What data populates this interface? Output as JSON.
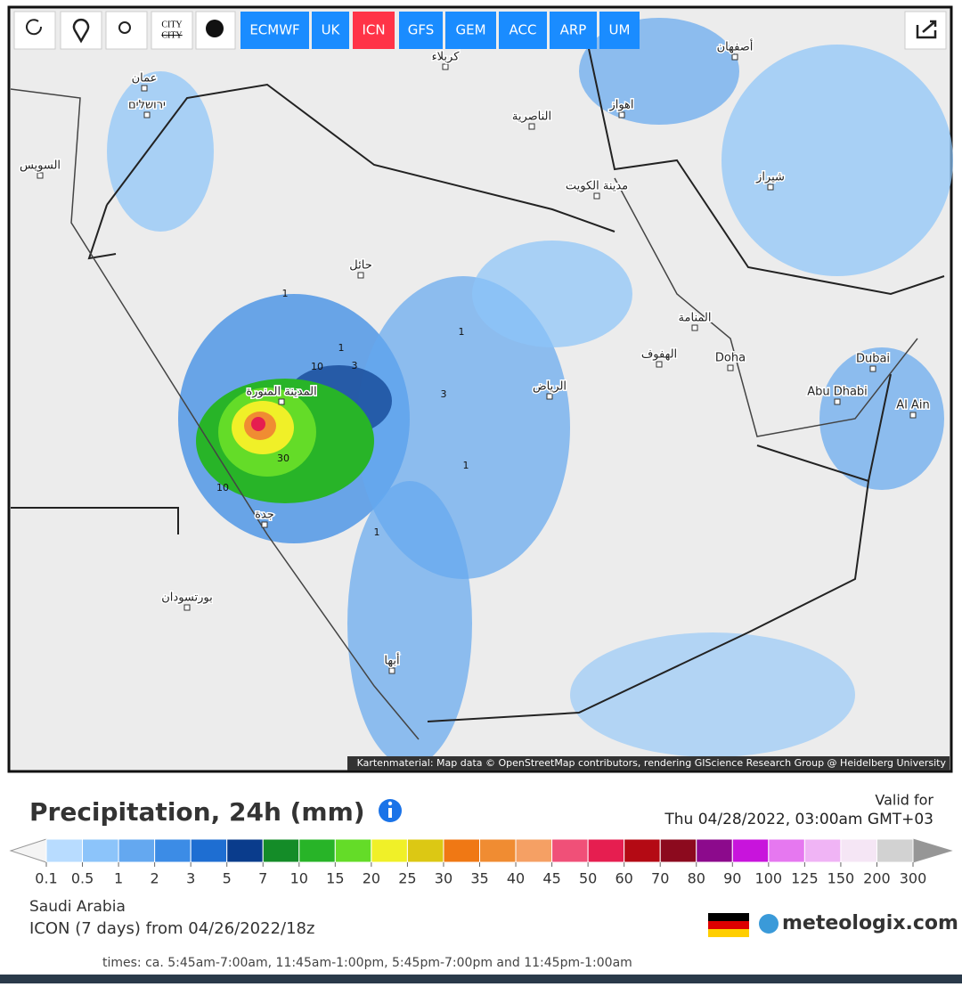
{
  "toolbar": {
    "tools": [
      "CITY",
      "CITY"
    ],
    "models": [
      "ECMWF",
      "UK",
      "ICN",
      "GFS",
      "GEM",
      "ACC",
      "ARP",
      "UM"
    ],
    "active_model": "ICN"
  },
  "map": {
    "labels": [
      "كربلاء",
      "أصفهان",
      "عمان",
      "ירושלים",
      "اهواز",
      "الناصرية",
      "السويس",
      "مدينة الكويت",
      "شيراز",
      "حائل",
      "المنامة",
      "الهفوف",
      "Doha",
      "Dubai",
      "الرياض",
      "المدينة المنورة",
      "Abu Dhabi",
      "Al Ain",
      "جدة",
      "بورتسودان",
      "أبها"
    ],
    "contours": [
      "1",
      "1",
      "1",
      "3",
      "10",
      "30",
      "10",
      "3",
      "1",
      "1"
    ],
    "attribution": "Kartenmaterial: Map data © OpenStreetMap contributors, rendering GIScience Research Group @ Heidelberg University"
  },
  "legend": {
    "title": "Precipitation, 24h (mm)",
    "valid_label": "Valid for",
    "valid_time": "Thu 04/28/2022, 03:00am GMT+03",
    "labels": [
      "0.1",
      "0.5",
      "1",
      "2",
      "3",
      "5",
      "7",
      "10",
      "15",
      "20",
      "25",
      "30",
      "35",
      "40",
      "45",
      "50",
      "60",
      "70",
      "80",
      "90",
      "100",
      "125",
      "150",
      "200",
      "300"
    ],
    "colors": [
      "#b8dcff",
      "#8cc4fa",
      "#64a8f0",
      "#3c8ce6",
      "#1e6ed2",
      "#0a3c8c",
      "#148c28",
      "#28b428",
      "#64dc28",
      "#f0f028",
      "#dcc814",
      "#f07814",
      "#f08c32",
      "#f5a064",
      "#f05078",
      "#e61e50",
      "#b40a14",
      "#8c0a1e",
      "#8c0a8c",
      "#c814dc",
      "#e678f0",
      "#f0b4f5",
      "#f5e6f5",
      "#d2d2d2"
    ]
  },
  "footer": {
    "region": "Saudi Arabia",
    "run": "ICON (7 days) from 04/26/2022/18z",
    "times": "times: ca. 5:45am-7:00am, 11:45am-1:00pm, 5:45pm-7:00pm and 11:45pm-1:00am",
    "brand": "meteologix.com"
  }
}
